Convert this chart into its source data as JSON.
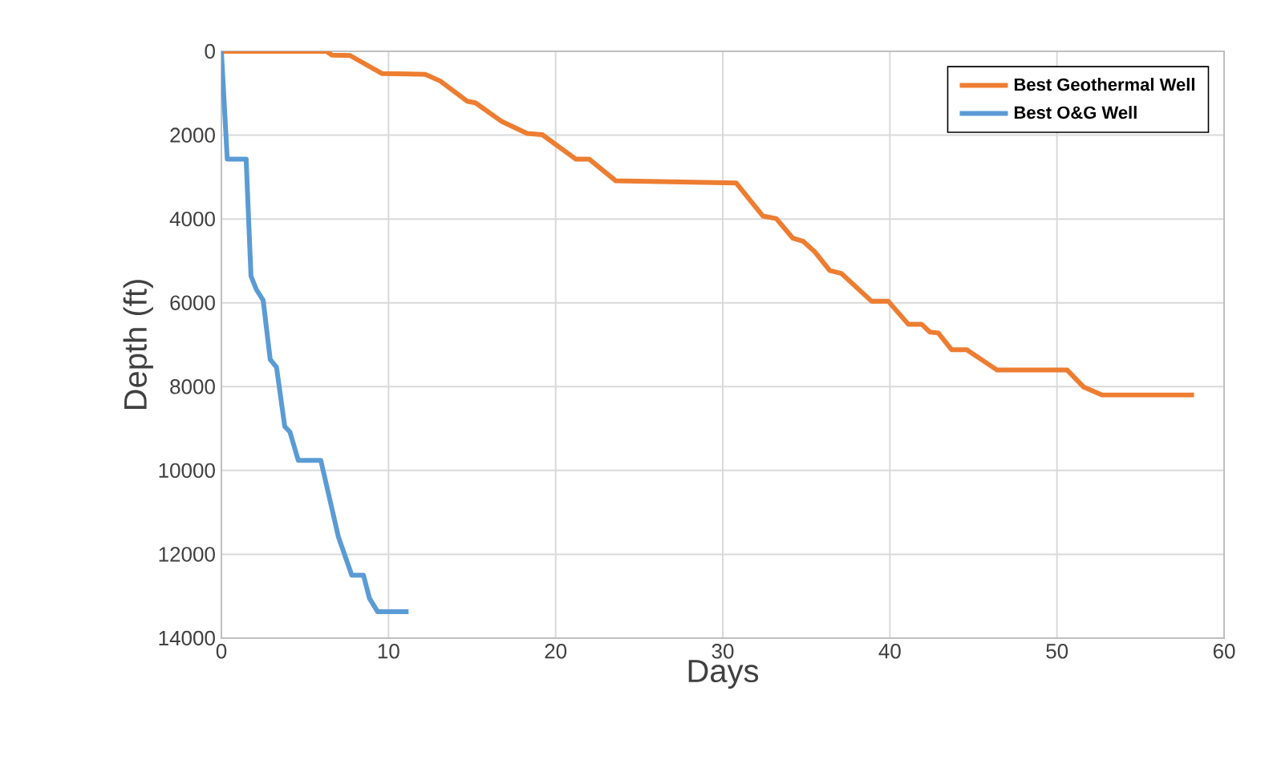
{
  "chart_data": {
    "type": "line",
    "xlabel": "Days",
    "ylabel": "Depth (ft)",
    "xlim": [
      0,
      60
    ],
    "xticks": [
      0,
      10,
      20,
      30,
      40,
      50,
      60
    ],
    "ylim": [
      14000,
      0
    ],
    "yticks": [
      0,
      2000,
      4000,
      6000,
      8000,
      10000,
      12000,
      14000
    ],
    "grid": true,
    "legend": "top right",
    "marker": "none",
    "line_style": "solid",
    "series": [
      {
        "name": "Best Geothermal Well",
        "color": "#ed7d31",
        "x": [
          0,
          6.3,
          6.6,
          7.7,
          9.6,
          12.2,
          13.1,
          14.7,
          15.2,
          16.8,
          18.3,
          19.2,
          21.2,
          22.0,
          23.6,
          30.8,
          32.4,
          33.2,
          34.2,
          34.8,
          35.5,
          36.4,
          37.1,
          38.9,
          39.9,
          41.1,
          41.9,
          42.4,
          42.9,
          43.7,
          44.6,
          46.4,
          50.6,
          51.6,
          52.7,
          58.2
        ],
        "values": [
          0,
          0,
          90,
          100,
          530,
          550,
          710,
          1190,
          1230,
          1680,
          1960,
          1990,
          2570,
          2570,
          3090,
          3140,
          3930,
          3990,
          4460,
          4530,
          4780,
          5230,
          5300,
          5960,
          5960,
          6510,
          6510,
          6700,
          6720,
          7120,
          7120,
          7600,
          7600,
          8010,
          8200,
          8200
        ]
      },
      {
        "name": "Best O&G Well",
        "color": "#5b9bd5",
        "x": [
          0,
          0.35,
          1.48,
          1.77,
          2.09,
          2.5,
          2.92,
          3.3,
          3.79,
          4.1,
          4.6,
          5.95,
          7.0,
          7.8,
          8.5,
          8.86,
          9.35,
          11.2
        ],
        "values": [
          0,
          2570,
          2570,
          5360,
          5680,
          5940,
          7350,
          7540,
          8950,
          9080,
          9760,
          9760,
          11580,
          12500,
          12500,
          13050,
          13370,
          13370
        ]
      }
    ]
  }
}
